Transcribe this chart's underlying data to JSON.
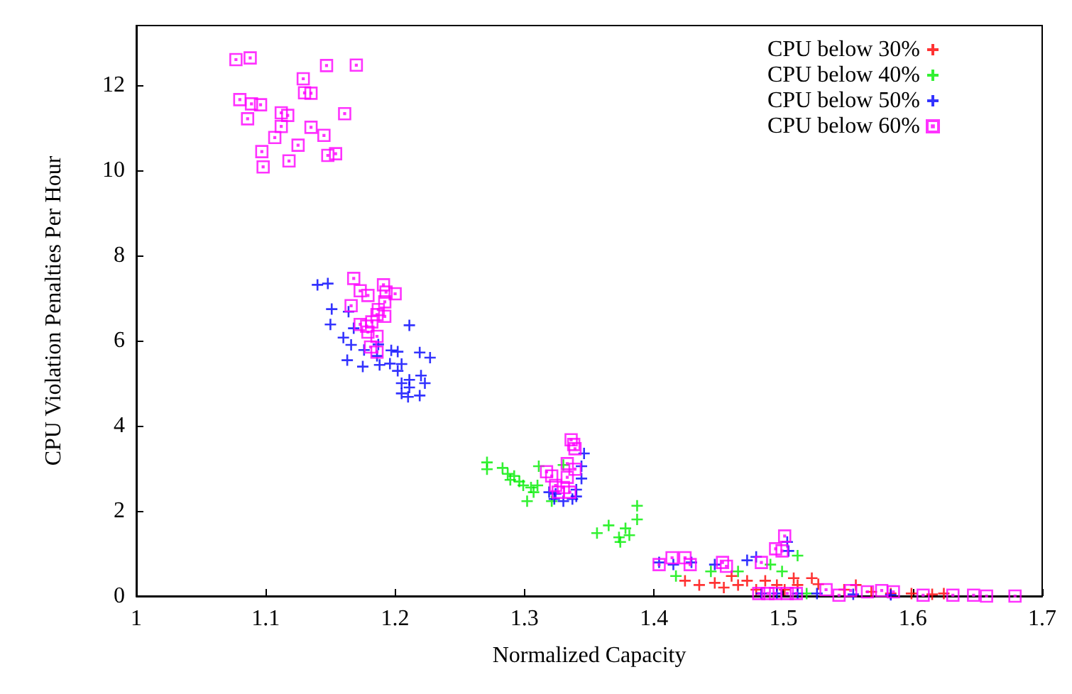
{
  "chart_data": {
    "type": "scatter",
    "xlabel": "Normalized Capacity",
    "ylabel": "CPU Violation Penalties Per Hour",
    "xlim": [
      1,
      1.7
    ],
    "xticks": [
      1,
      1.1,
      1.2,
      1.3,
      1.4,
      1.5,
      1.6,
      1.7
    ],
    "ylim": [
      0,
      13.4
    ],
    "yticks": [
      0,
      2,
      4,
      6,
      8,
      10,
      12
    ],
    "grid": false,
    "legend": "top right",
    "series": [
      {
        "name": "CPU below 30%",
        "color": "#ff0000",
        "marker": "cross",
        "x": [
          1.424,
          1.435,
          1.447,
          1.454,
          1.46,
          1.465,
          1.472,
          1.479,
          1.486,
          1.495,
          1.501,
          1.508,
          1.511,
          1.522,
          1.527,
          1.547,
          1.556,
          1.568,
          1.583,
          1.599,
          1.615,
          1.624
        ],
        "values": [
          0.36,
          0.26,
          0.31,
          0.2,
          0.47,
          0.26,
          0.36,
          0.15,
          0.36,
          0.26,
          0.15,
          0.42,
          0.26,
          0.42,
          0.28,
          0.15,
          0.26,
          0.1,
          0.06,
          0.06,
          0.04,
          0.06
        ]
      },
      {
        "name": "CPU below 40%",
        "color": "#00ee00",
        "marker": "cross",
        "x": [
          1.271,
          1.271,
          1.283,
          1.287,
          1.292,
          1.289,
          1.296,
          1.299,
          1.305,
          1.31,
          1.307,
          1.302,
          1.311,
          1.33,
          1.321,
          1.387,
          1.387,
          1.378,
          1.365,
          1.356,
          1.373,
          1.381,
          1.374,
          1.417,
          1.444,
          1.465,
          1.49,
          1.511,
          1.518,
          1.499
        ],
        "values": [
          3.14,
          2.98,
          3.01,
          2.87,
          2.82,
          2.73,
          2.69,
          2.6,
          2.55,
          2.6,
          2.44,
          2.23,
          3.05,
          3.08,
          2.23,
          2.12,
          1.8,
          1.59,
          1.66,
          1.48,
          1.38,
          1.43,
          1.27,
          0.47,
          0.58,
          0.58,
          0.74,
          0.95,
          0.06,
          0.58
        ]
      },
      {
        "name": "CPU below 50%",
        "color": "#0000ff",
        "marker": "cross",
        "x": [
          1.14,
          1.148,
          1.151,
          1.164,
          1.15,
          1.168,
          1.211,
          1.16,
          1.166,
          1.176,
          1.187,
          1.186,
          1.197,
          1.202,
          1.219,
          1.227,
          1.163,
          1.175,
          1.188,
          1.196,
          1.205,
          1.202,
          1.22,
          1.211,
          1.223,
          1.205,
          1.211,
          1.205,
          1.219,
          1.21,
          1.346,
          1.344,
          1.344,
          1.34,
          1.319,
          1.323,
          1.33,
          1.337,
          1.34,
          1.324,
          1.404,
          1.415,
          1.429,
          1.447,
          1.472,
          1.479,
          1.504,
          1.503,
          1.483,
          1.495,
          1.511,
          1.526,
          1.554,
          1.583
        ],
        "values": [
          7.31,
          7.34,
          6.74,
          6.68,
          6.38,
          6.29,
          6.36,
          6.07,
          5.9,
          5.78,
          5.91,
          5.64,
          5.77,
          5.74,
          5.72,
          5.6,
          5.54,
          5.39,
          5.43,
          5.46,
          5.45,
          5.29,
          5.18,
          5.08,
          5.0,
          5.0,
          4.9,
          4.76,
          4.71,
          4.68,
          3.35,
          3.05,
          2.76,
          2.5,
          2.44,
          2.28,
          2.23,
          2.28,
          2.34,
          2.4,
          0.79,
          0.74,
          0.79,
          0.74,
          0.84,
          0.92,
          1.06,
          1.27,
          0.06,
          0.06,
          0.06,
          0.06,
          0.04,
          0.03
        ]
      },
      {
        "name": "CPU below 60%",
        "color": "#ff00ff",
        "marker": "square",
        "x": [
          1.077,
          1.088,
          1.147,
          1.17,
          1.129,
          1.13,
          1.135,
          1.08,
          1.089,
          1.096,
          1.161,
          1.112,
          1.117,
          1.086,
          1.112,
          1.135,
          1.107,
          1.145,
          1.125,
          1.097,
          1.148,
          1.154,
          1.118,
          1.098,
          1.168,
          1.173,
          1.179,
          1.191,
          1.193,
          1.2,
          1.192,
          1.166,
          1.187,
          1.192,
          1.186,
          1.182,
          1.173,
          1.178,
          1.179,
          1.186,
          1.181,
          1.186,
          1.336,
          1.338,
          1.339,
          1.317,
          1.321,
          1.333,
          1.339,
          1.333,
          1.324,
          1.33,
          1.326,
          1.335,
          1.404,
          1.414,
          1.424,
          1.428,
          1.453,
          1.456,
          1.483,
          1.501,
          1.494,
          1.499,
          1.481,
          1.488,
          1.494,
          1.503,
          1.51,
          1.533,
          1.543,
          1.552,
          1.565,
          1.576,
          1.585,
          1.608,
          1.631,
          1.647,
          1.657,
          1.679
        ],
        "values": [
          12.6,
          12.64,
          12.46,
          12.47,
          12.15,
          11.82,
          11.81,
          11.66,
          11.56,
          11.54,
          11.33,
          11.35,
          11.29,
          11.21,
          11.03,
          11.01,
          10.77,
          10.82,
          10.59,
          10.44,
          10.35,
          10.39,
          10.22,
          10.08,
          7.46,
          7.17,
          7.06,
          7.31,
          7.14,
          7.1,
          6.91,
          6.82,
          6.73,
          6.57,
          6.61,
          6.44,
          6.38,
          6.34,
          6.2,
          6.1,
          5.85,
          5.73,
          3.67,
          3.56,
          3.46,
          2.92,
          2.82,
          3.11,
          2.98,
          2.79,
          2.6,
          2.55,
          2.44,
          2.44,
          0.74,
          0.9,
          0.9,
          0.74,
          0.79,
          0.7,
          0.79,
          1.41,
          1.11,
          1.06,
          0.06,
          0.06,
          0.06,
          0.06,
          0.06,
          0.15,
          0.02,
          0.13,
          0.1,
          0.13,
          0.1,
          0.02,
          0.02,
          0.02,
          0,
          0
        ]
      }
    ]
  }
}
